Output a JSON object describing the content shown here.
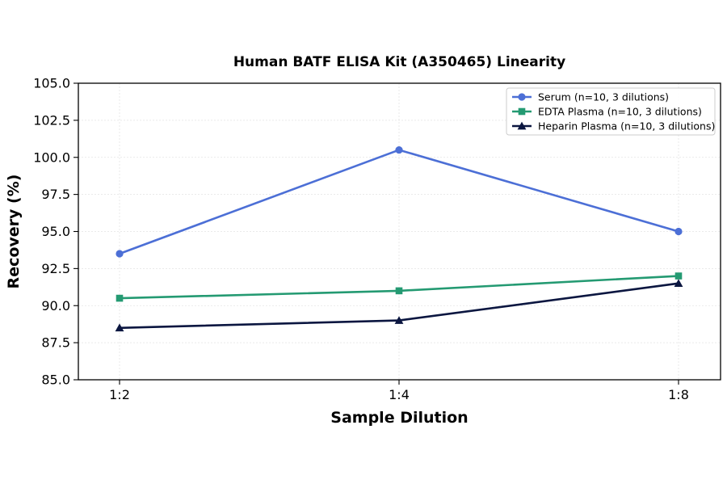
{
  "chart_data": {
    "type": "line",
    "title": "Human BATF ELISA Kit (A350465) Linearity",
    "xlabel": "Sample Dilution",
    "ylabel": "Recovery (%)",
    "categories": [
      "1:2",
      "1:4",
      "1:8"
    ],
    "ylim": [
      85.0,
      105.0
    ],
    "yticks": [
      "85.0",
      "87.5",
      "90.0",
      "92.5",
      "95.0",
      "97.5",
      "100.0",
      "102.5",
      "105.0"
    ],
    "grid": true,
    "legend_position": "top-right",
    "series": [
      {
        "name": "Serum (n=10, 3 dilutions)",
        "values": [
          93.5,
          100.5,
          95.0
        ],
        "color": "#4c6fd6",
        "marker": "circle"
      },
      {
        "name": "EDTA Plasma (n=10, 3 dilutions)",
        "values": [
          90.5,
          91.0,
          92.0
        ],
        "color": "#249a72",
        "marker": "square"
      },
      {
        "name": "Heparin Plasma (n=10, 3 dilutions)",
        "values": [
          88.5,
          89.0,
          91.5
        ],
        "color": "#0b1640",
        "marker": "triangle"
      }
    ]
  }
}
